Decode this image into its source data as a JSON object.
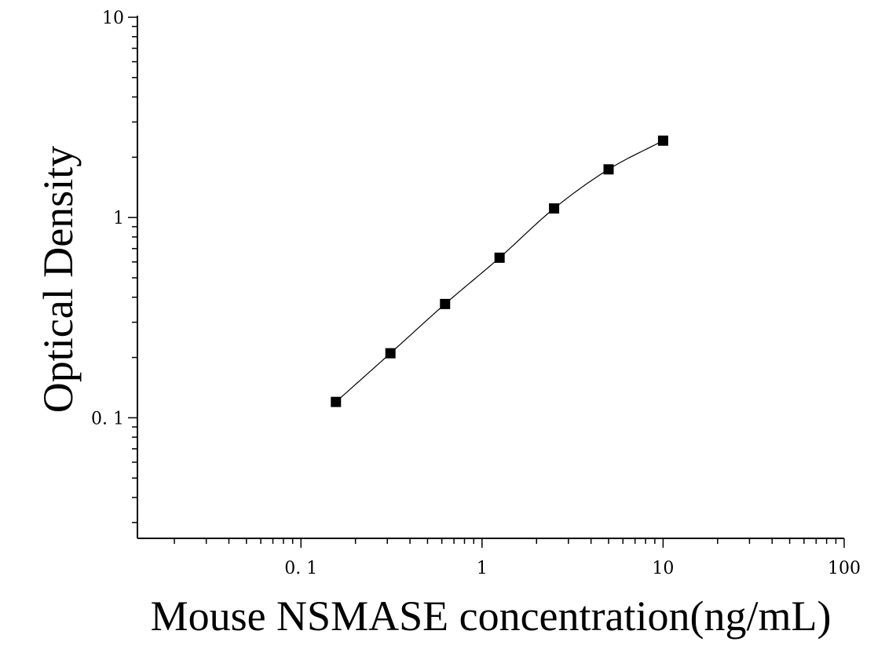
{
  "chart_data": {
    "type": "scatter",
    "title": "",
    "xlabel": "Mouse NSMASE concentration(ng/mL)",
    "ylabel": "Optical Density",
    "x_scale": "log",
    "y_scale": "log",
    "xlim": [
      0.0125,
      100
    ],
    "ylim": [
      0.025,
      10
    ],
    "x_ticks": [
      {
        "value": 0.1,
        "label": "0. 1"
      },
      {
        "value": 1,
        "label": "1"
      },
      {
        "value": 10,
        "label": "10"
      },
      {
        "value": 100,
        "label": "100"
      }
    ],
    "y_ticks": [
      {
        "value": 0.1,
        "label": "0. 1"
      },
      {
        "value": 1,
        "label": "1"
      },
      {
        "value": 10,
        "label": "10"
      }
    ],
    "grid": false,
    "legend": "none",
    "series": [
      {
        "marker": "square",
        "fit_line": true,
        "x": [
          0.156,
          0.312,
          0.625,
          1.25,
          2.5,
          5,
          10
        ],
        "y": [
          0.12,
          0.21,
          0.37,
          0.63,
          1.11,
          1.74,
          2.42
        ]
      }
    ],
    "colors": {
      "marker": "#000000",
      "line": "#000000",
      "axis": "#000000"
    }
  }
}
